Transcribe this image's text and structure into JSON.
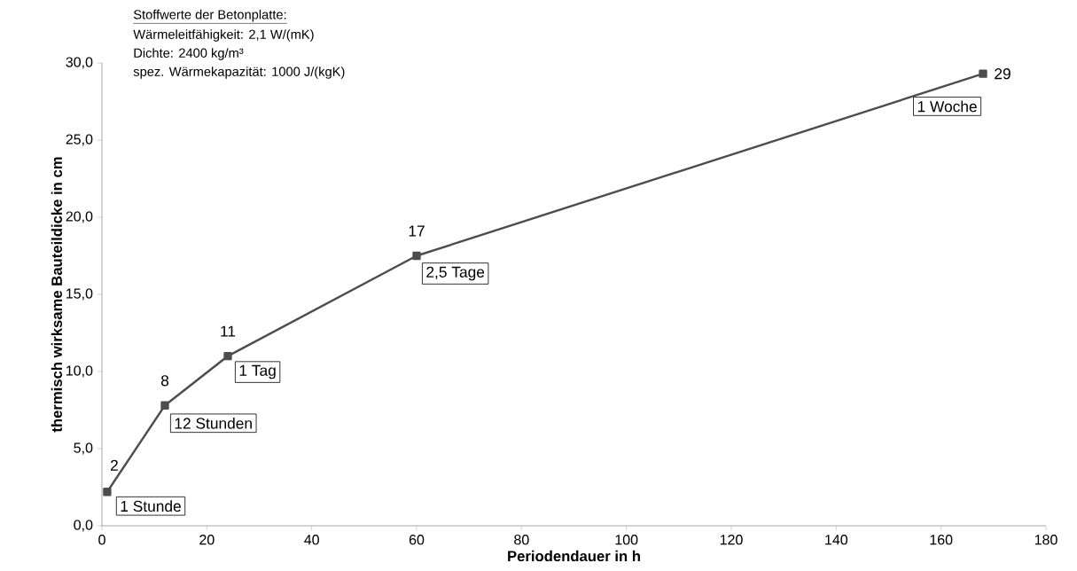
{
  "chart_data": {
    "type": "line",
    "xlabel": "Periodendauer in h",
    "ylabel": "thermisch wirksame Bauteildicke in cm",
    "x": [
      1,
      12,
      24,
      60,
      168
    ],
    "series": [
      {
        "color": "#4d4d4d",
        "values": [
          2.2,
          7.8,
          11.0,
          17.5,
          29.3
        ],
        "value_labels": [
          "2",
          "8",
          "11",
          "17",
          "29"
        ]
      }
    ],
    "marker": "square",
    "line_style": "solid",
    "xlim": [
      0,
      180
    ],
    "xticks": [
      0,
      20,
      40,
      60,
      80,
      100,
      120,
      140,
      160,
      180
    ],
    "ylim": [
      0,
      30
    ],
    "yticks": [
      {
        "value": 0,
        "label": "0,0"
      },
      {
        "value": 5,
        "label": "5,0"
      },
      {
        "value": 10,
        "label": "10,0"
      },
      {
        "value": 15,
        "label": "15,0"
      },
      {
        "value": 20,
        "label": "20,0"
      },
      {
        "value": 25,
        "label": "25,0"
      },
      {
        "value": 30,
        "label": "30,0"
      }
    ],
    "grid": false,
    "annotations": [
      "Stoffwerte der Betonplatte:",
      "Wärmeleitfähigkeit: 2,1 W/(mK)",
      "Dichte: 2400 kg/m³",
      "spez. Wärmekapazität: 1000 J/(kgK)",
      {
        "text": "1 Stunde",
        "x": 1,
        "y": 2.2
      },
      {
        "text": "12 Stunden",
        "x": 12,
        "y": 7.8
      },
      {
        "text": "1 Tag",
        "x": 24,
        "y": 11.0
      },
      {
        "text": "2,5 Tage",
        "x": 60,
        "y": 17.5
      },
      {
        "text": "1 Woche",
        "x": 168,
        "y": 29.3
      }
    ]
  }
}
